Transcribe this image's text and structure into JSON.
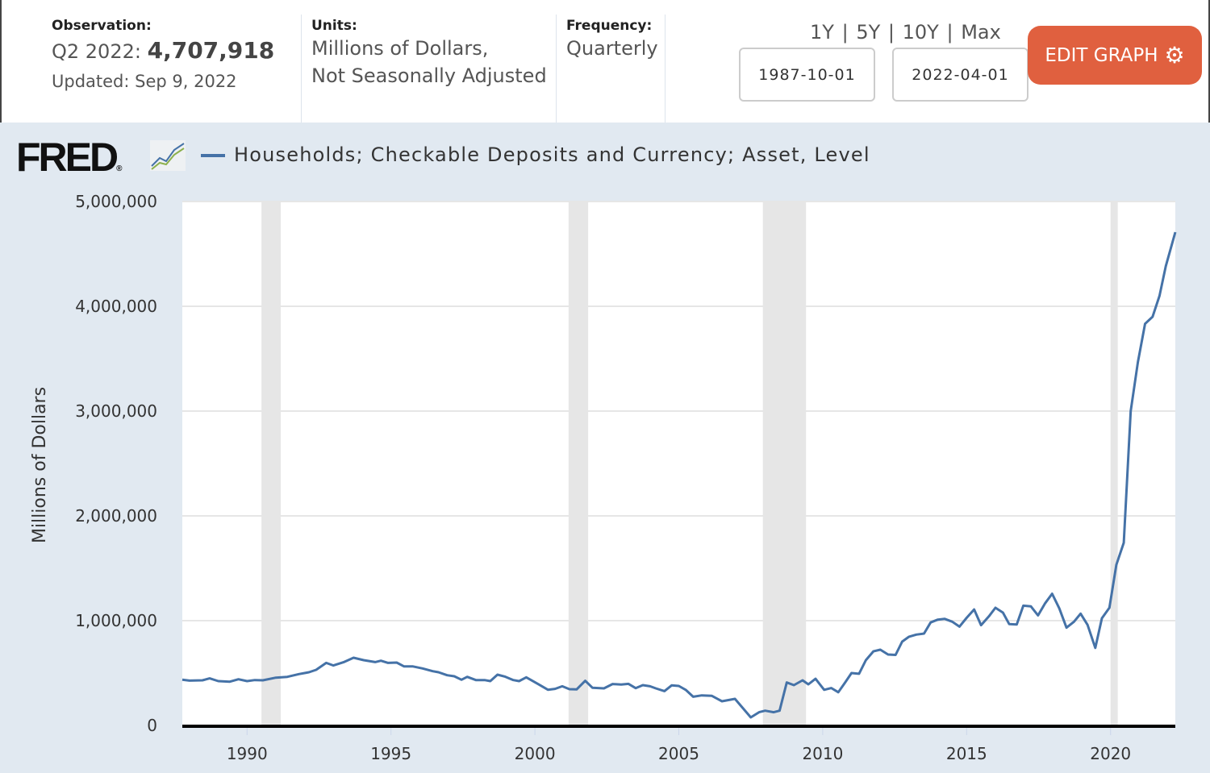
{
  "header": {
    "observation_label": "Observation:",
    "observation_period": "Q2 2022:",
    "observation_value": "4,707,918",
    "updated": "Updated: Sep 9, 2022",
    "units_label": "Units:",
    "units_line1": "Millions of Dollars,",
    "units_line2": "Not Seasonally Adjusted",
    "frequency_label": "Frequency:",
    "frequency_value": "Quarterly",
    "ranges": [
      "1Y",
      "5Y",
      "10Y",
      "Max"
    ],
    "range_sep": "|",
    "start_date": "1987-10-01",
    "end_date": "2022-04-01",
    "edit_button": "EDIT GRAPH",
    "edit_color": "#e0603f"
  },
  "logo": "FRED",
  "chart_data": {
    "type": "line",
    "title": "Households; Checkable Deposits and Currency; Asset, Level",
    "ylabel": "Millions of Dollars",
    "xlabel": "",
    "xlim": [
      1987.75,
      2022.25
    ],
    "ylim": [
      0,
      5000000
    ],
    "yticks": [
      0,
      1000000,
      2000000,
      3000000,
      4000000,
      5000000
    ],
    "ytick_labels": [
      "0",
      "1,000,000",
      "2,000,000",
      "3,000,000",
      "4,000,000",
      "5,000,000"
    ],
    "xticks": [
      1990,
      1995,
      2000,
      2005,
      2010,
      2015,
      2020
    ],
    "xtick_labels": [
      "1990",
      "1995",
      "2000",
      "2005",
      "2010",
      "2015",
      "2020"
    ],
    "grid": true,
    "legend": "top-left",
    "series_color": "#4572a7",
    "recessions": [
      [
        1990.5,
        1991.17
      ],
      [
        2001.17,
        2001.85
      ],
      [
        2007.92,
        2009.42
      ],
      [
        2020.0,
        2020.25
      ]
    ],
    "series": [
      {
        "name": "Households; Checkable Deposits and Currency; Asset, Level",
        "points": [
          [
            1987.75,
            436000
          ],
          [
            1988.0,
            428000
          ],
          [
            1988.45,
            431000
          ],
          [
            1988.7,
            449000
          ],
          [
            1989.0,
            423000
          ],
          [
            1989.4,
            418000
          ],
          [
            1989.7,
            441000
          ],
          [
            1990.0,
            423000
          ],
          [
            1990.27,
            433000
          ],
          [
            1990.55,
            431000
          ],
          [
            1991.0,
            456000
          ],
          [
            1991.4,
            464000
          ],
          [
            1991.8,
            490000
          ],
          [
            1992.15,
            508000
          ],
          [
            1992.4,
            531000
          ],
          [
            1992.75,
            597000
          ],
          [
            1993.0,
            572000
          ],
          [
            1993.35,
            603000
          ],
          [
            1993.7,
            646000
          ],
          [
            1994.05,
            623000
          ],
          [
            1994.45,
            605000
          ],
          [
            1994.65,
            618000
          ],
          [
            1994.9,
            597000
          ],
          [
            1995.2,
            600000
          ],
          [
            1995.45,
            564000
          ],
          [
            1995.75,
            564000
          ],
          [
            1996.1,
            544000
          ],
          [
            1996.45,
            518000
          ],
          [
            1996.65,
            508000
          ],
          [
            1996.95,
            479000
          ],
          [
            1997.2,
            469000
          ],
          [
            1997.45,
            436000
          ],
          [
            1997.65,
            464000
          ],
          [
            1997.95,
            433000
          ],
          [
            1998.25,
            433000
          ],
          [
            1998.45,
            423000
          ],
          [
            1998.7,
            485000
          ],
          [
            1998.95,
            467000
          ],
          [
            1999.25,
            433000
          ],
          [
            1999.45,
            423000
          ],
          [
            1999.7,
            459000
          ],
          [
            2000.1,
            397000
          ],
          [
            2000.45,
            341000
          ],
          [
            2000.7,
            349000
          ],
          [
            2000.95,
            374000
          ],
          [
            2001.2,
            346000
          ],
          [
            2001.45,
            344000
          ],
          [
            2001.75,
            426000
          ],
          [
            2002.0,
            359000
          ],
          [
            2002.4,
            354000
          ],
          [
            2002.7,
            395000
          ],
          [
            2003.0,
            390000
          ],
          [
            2003.25,
            397000
          ],
          [
            2003.5,
            356000
          ],
          [
            2003.75,
            385000
          ],
          [
            2004.0,
            374000
          ],
          [
            2004.2,
            354000
          ],
          [
            2004.5,
            328000
          ],
          [
            2004.75,
            382000
          ],
          [
            2005.0,
            377000
          ],
          [
            2005.25,
            338000
          ],
          [
            2005.5,
            274000
          ],
          [
            2005.8,
            287000
          ],
          [
            2006.15,
            282000
          ],
          [
            2006.5,
            231000
          ],
          [
            2006.95,
            254000
          ],
          [
            2007.5,
            77000
          ],
          [
            2007.8,
            128000
          ],
          [
            2008.0,
            141000
          ],
          [
            2008.3,
            126000
          ],
          [
            2008.5,
            141000
          ],
          [
            2008.75,
            410000
          ],
          [
            2009.0,
            385000
          ],
          [
            2009.3,
            431000
          ],
          [
            2009.5,
            392000
          ],
          [
            2009.75,
            445000
          ],
          [
            2010.05,
            340000
          ],
          [
            2010.3,
            357000
          ],
          [
            2010.54,
            317000
          ],
          [
            2010.77,
            407000
          ],
          [
            2011.0,
            500000
          ],
          [
            2011.26,
            493000
          ],
          [
            2011.5,
            623000
          ],
          [
            2011.76,
            707000
          ],
          [
            2012.0,
            723000
          ],
          [
            2012.27,
            677000
          ],
          [
            2012.53,
            673000
          ],
          [
            2012.76,
            800000
          ],
          [
            2013.0,
            847000
          ],
          [
            2013.25,
            867000
          ],
          [
            2013.52,
            877000
          ],
          [
            2013.75,
            983000
          ],
          [
            2014.0,
            1010000
          ],
          [
            2014.24,
            1017000
          ],
          [
            2014.5,
            990000
          ],
          [
            2014.75,
            943000
          ],
          [
            2015.0,
            1027000
          ],
          [
            2015.26,
            1107000
          ],
          [
            2015.5,
            957000
          ],
          [
            2015.77,
            1040000
          ],
          [
            2016.0,
            1123000
          ],
          [
            2016.26,
            1077000
          ],
          [
            2016.48,
            967000
          ],
          [
            2016.74,
            963000
          ],
          [
            2016.97,
            1143000
          ],
          [
            2017.23,
            1137000
          ],
          [
            2017.48,
            1050000
          ],
          [
            2017.73,
            1167000
          ],
          [
            2017.97,
            1257000
          ],
          [
            2018.22,
            1117000
          ],
          [
            2018.47,
            933000
          ],
          [
            2018.73,
            990000
          ],
          [
            2018.96,
            1067000
          ],
          [
            2019.2,
            960000
          ],
          [
            2019.47,
            740000
          ],
          [
            2019.7,
            1023000
          ],
          [
            2019.96,
            1123000
          ],
          [
            2020.2,
            1533000
          ],
          [
            2020.46,
            1743000
          ],
          [
            2020.7,
            3000000
          ],
          [
            2020.95,
            3467000
          ],
          [
            2021.2,
            3833000
          ],
          [
            2021.46,
            3900000
          ],
          [
            2021.7,
            4100000
          ],
          [
            2021.92,
            4383000
          ],
          [
            2022.25,
            4707918
          ]
        ]
      }
    ]
  }
}
